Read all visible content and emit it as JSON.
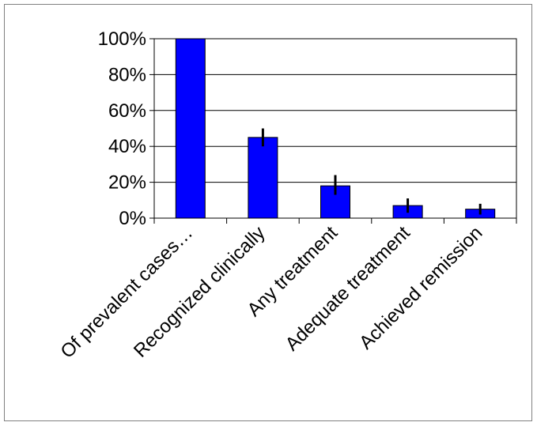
{
  "chart_data": {
    "type": "bar",
    "title": "",
    "xlabel": "",
    "ylabel": "",
    "categories": [
      "Of prevalent cases…",
      "Recognized clinically",
      "Any treatment",
      "Adequate treatment",
      "Achieved remission"
    ],
    "values": [
      100,
      45,
      18,
      7,
      5
    ],
    "error_bars": [
      {
        "low": 100,
        "high": 100
      },
      {
        "low": 40,
        "high": 50
      },
      {
        "low": 13,
        "high": 24
      },
      {
        "low": 3,
        "high": 11
      },
      {
        "low": 2,
        "high": 8
      }
    ],
    "ylim": [
      0,
      100
    ],
    "yticks": [
      "0%",
      "20%",
      "40%",
      "60%",
      "80%",
      "100%"
    ],
    "grid": true,
    "legend": "none",
    "colors": {
      "bar": "#0000ff",
      "bar_border": "#000000",
      "grid": "#000000",
      "error": "#000000",
      "frame": "#808080"
    }
  }
}
